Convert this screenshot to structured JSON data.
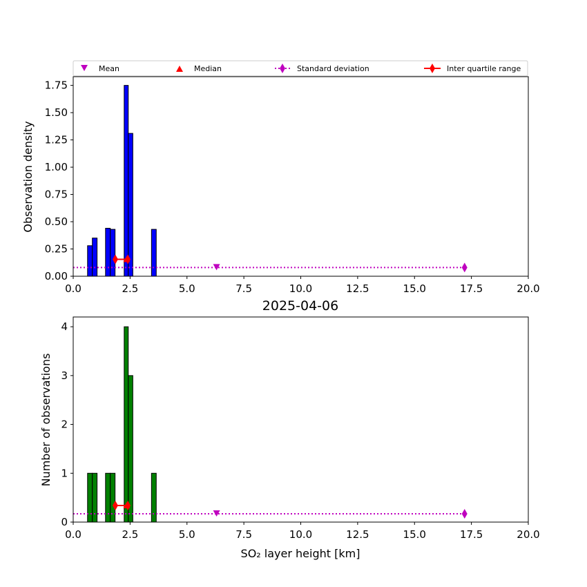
{
  "legend": {
    "mean_label": "Mean",
    "median_label": "Median",
    "std_label": "Standard deviation",
    "iqr_label": "Inter quartile range",
    "placement": "top, above upper plot"
  },
  "colors": {
    "density_bars": "#0000ff",
    "count_bars": "#008000",
    "mean_marker": "#bf00bf",
    "std_marker": "#bf00bf",
    "median_marker": "#ff0000",
    "iqr_marker": "#ff0000"
  },
  "chart_data": [
    {
      "type": "bar",
      "title": "",
      "xlabel": "",
      "ylabel": "Observation density",
      "xlim": [
        0,
        20
      ],
      "ylim": [
        0,
        1.83
      ],
      "xticks": [
        "0.0",
        "2.5",
        "5.0",
        "7.5",
        "10.0",
        "12.5",
        "15.0",
        "17.5",
        "20.0"
      ],
      "yticks": [
        "0.00",
        "0.25",
        "0.50",
        "0.75",
        "1.00",
        "1.25",
        "1.50",
        "1.75"
      ],
      "bars": [
        {
          "x0": 0.63,
          "x1": 0.84,
          "value": 0.28
        },
        {
          "x0": 0.84,
          "x1": 1.05,
          "value": 0.35
        },
        {
          "x0": 1.42,
          "x1": 1.63,
          "value": 0.44
        },
        {
          "x0": 1.63,
          "x1": 1.84,
          "value": 0.43
        },
        {
          "x0": 2.24,
          "x1": 2.42,
          "value": 1.75
        },
        {
          "x0": 2.42,
          "x1": 2.62,
          "value": 1.31
        },
        {
          "x0": 3.44,
          "x1": 3.65,
          "value": 0.43
        }
      ],
      "stats": {
        "mean": {
          "x": 6.3,
          "y": 0.08
        },
        "std": {
          "x0": 0,
          "x1": 17.2,
          "y": 0.08
        },
        "iqr": {
          "x0": 1.85,
          "x1": 2.4,
          "y": 0.155
        },
        "median": {
          "x": 2.35,
          "y": 0.155
        }
      },
      "grid": false
    },
    {
      "type": "bar",
      "title": "2025-04-06",
      "xlabel": "SO₂ layer height [km]",
      "ylabel": "Number of observations",
      "xlim": [
        0,
        20
      ],
      "ylim": [
        0,
        4.2
      ],
      "xticks": [
        "0.0",
        "2.5",
        "5.0",
        "7.5",
        "10.0",
        "12.5",
        "15.0",
        "17.5",
        "20.0"
      ],
      "yticks": [
        "0",
        "1",
        "2",
        "3",
        "4"
      ],
      "bars": [
        {
          "x0": 0.63,
          "x1": 0.84,
          "value": 1
        },
        {
          "x0": 0.84,
          "x1": 1.05,
          "value": 1
        },
        {
          "x0": 1.42,
          "x1": 1.63,
          "value": 1
        },
        {
          "x0": 1.63,
          "x1": 1.84,
          "value": 1
        },
        {
          "x0": 2.24,
          "x1": 2.42,
          "value": 4
        },
        {
          "x0": 2.42,
          "x1": 2.62,
          "value": 3
        },
        {
          "x0": 3.44,
          "x1": 3.65,
          "value": 1
        }
      ],
      "stats": {
        "mean": {
          "x": 6.3,
          "y": 0.17
        },
        "std": {
          "x0": 0,
          "x1": 17.2,
          "y": 0.17
        },
        "iqr": {
          "x0": 1.85,
          "x1": 2.4,
          "y": 0.34
        },
        "median": {
          "x": 2.35,
          "y": 0.34
        }
      },
      "grid": false
    }
  ]
}
